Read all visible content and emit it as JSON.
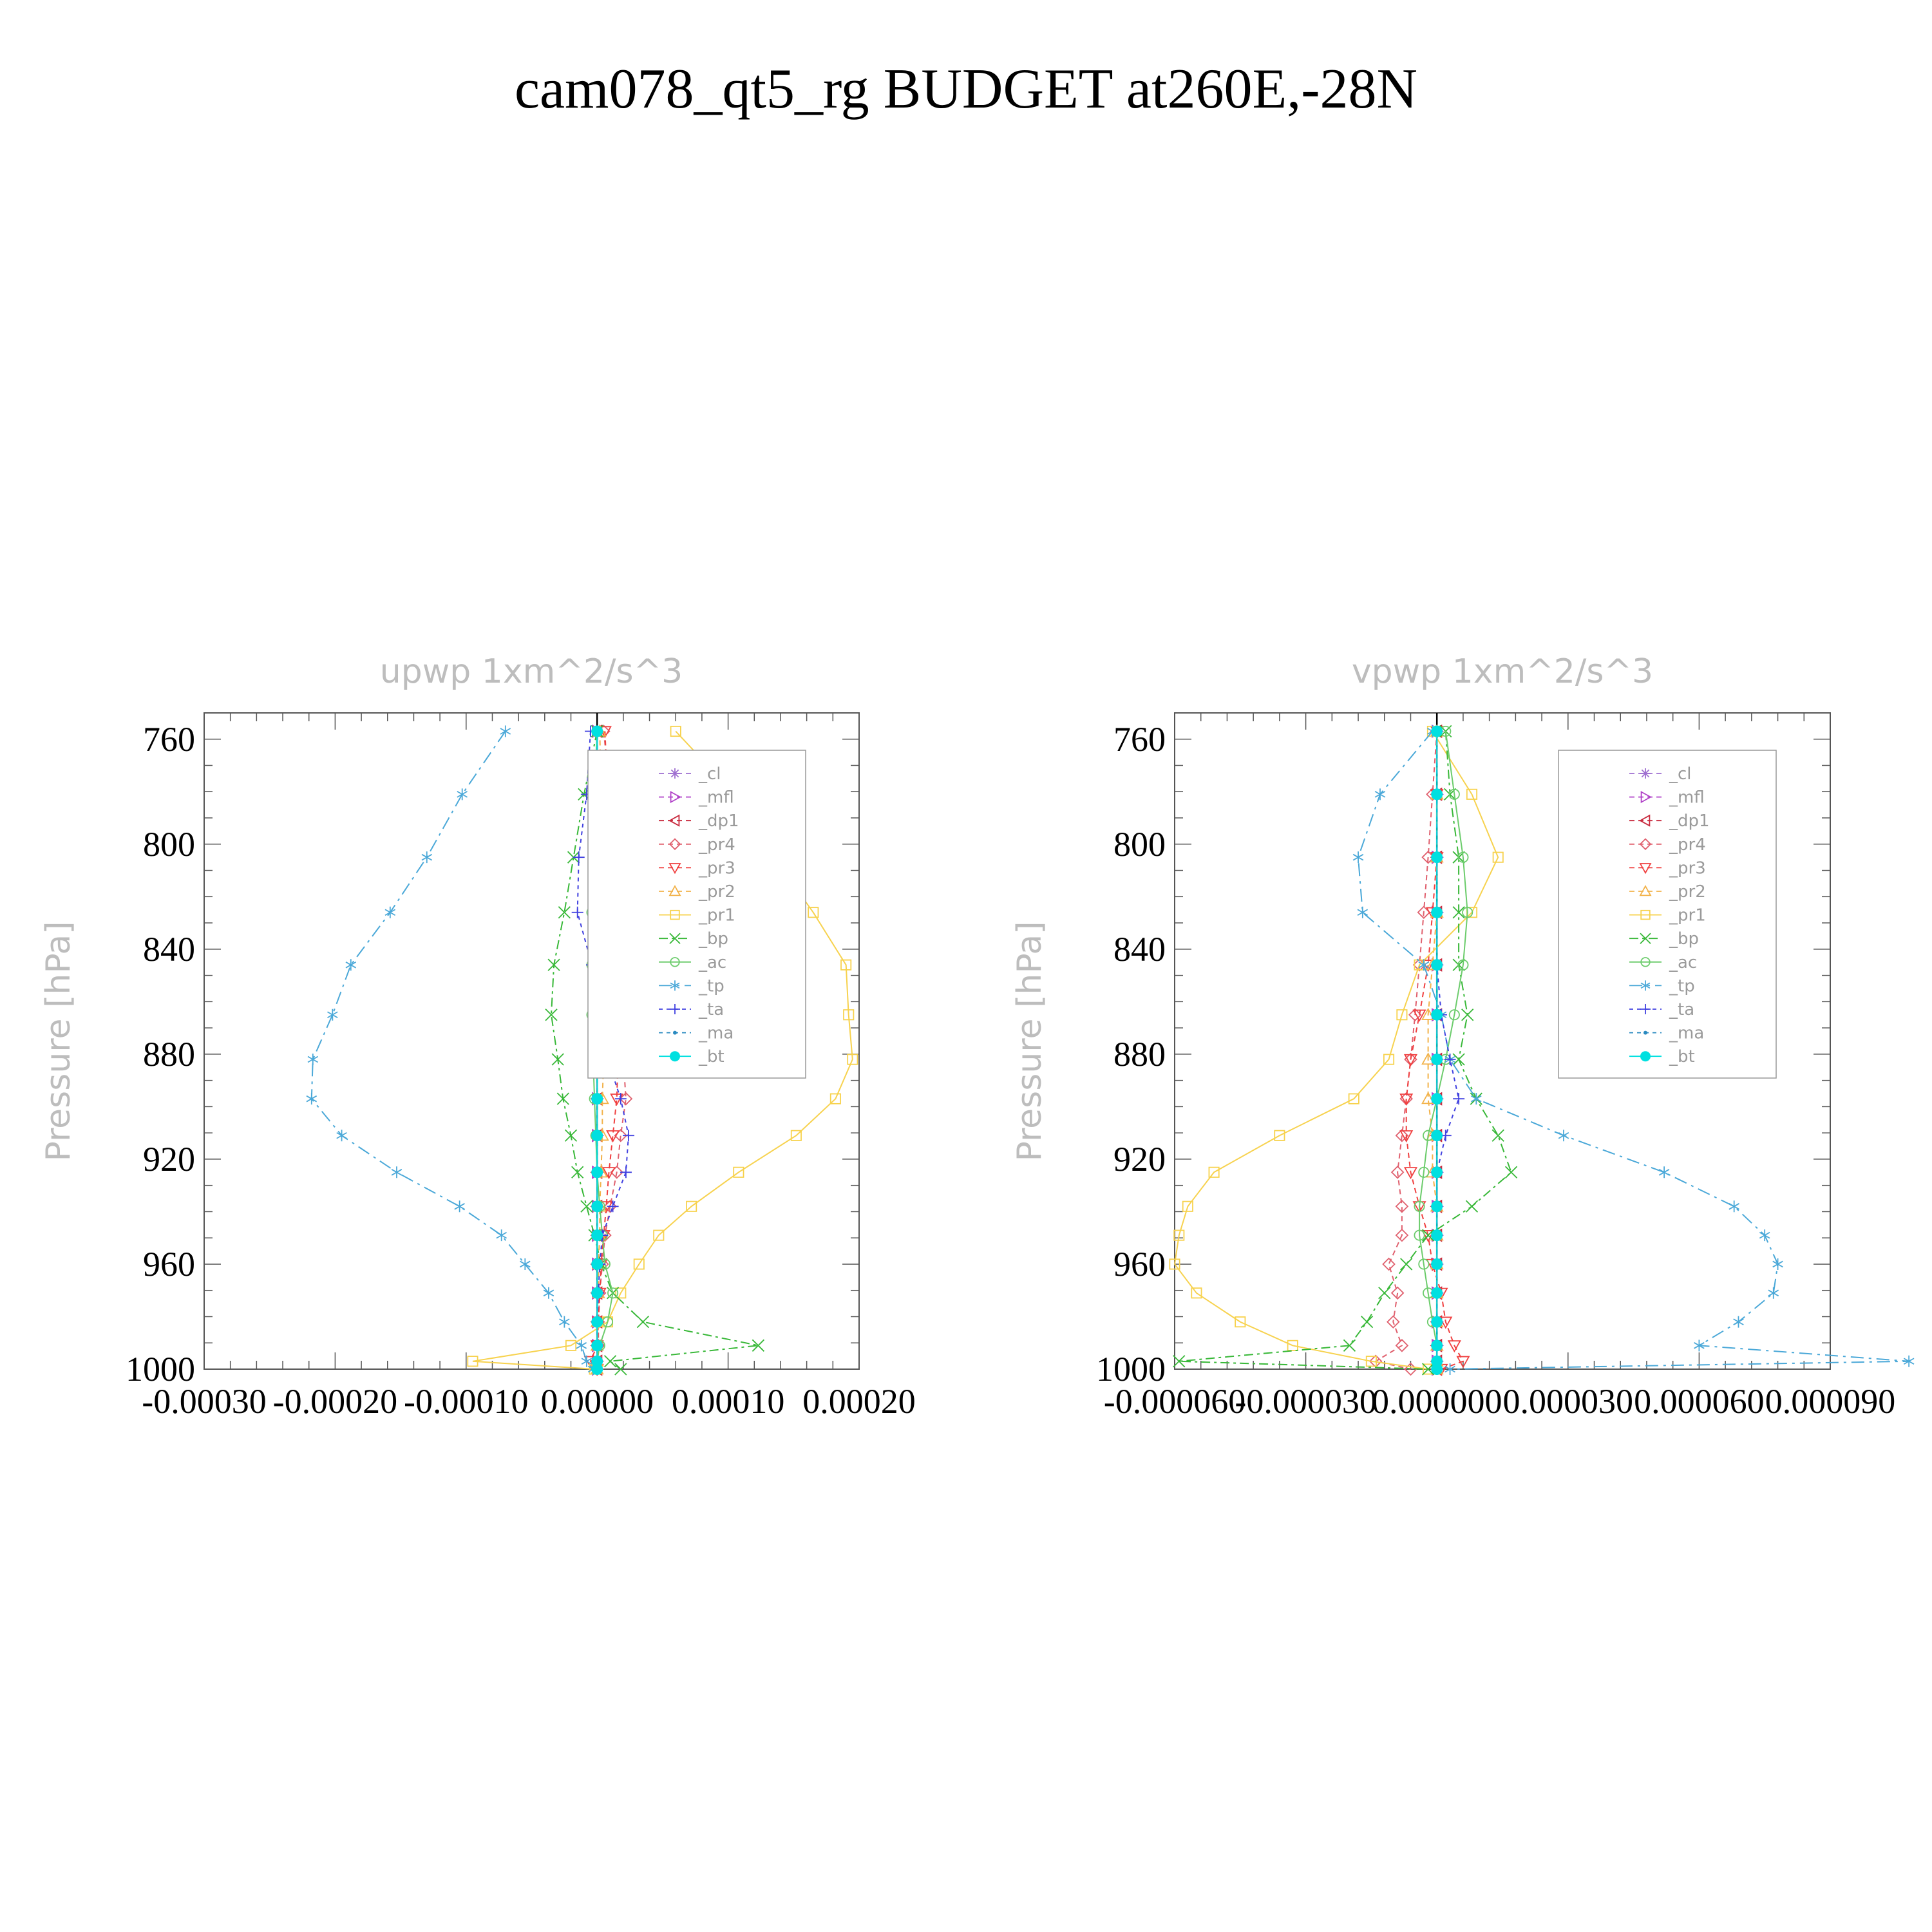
{
  "figure": {
    "title": "cam078_qt5_rg  BUDGET at260E,-28N"
  },
  "chart_data": [
    {
      "type": "line",
      "title": "upwp   1xm^2/s^3",
      "xlabel": "",
      "ylabel": "Pressure [hPa]",
      "xlim": [
        -0.0003,
        0.0002
      ],
      "ylim": [
        1000,
        750
      ],
      "x_tick_labels": [
        "-0.00030",
        "-0.00020",
        "-0.00010",
        "0.00000",
        "0.00010",
        "0.00020"
      ],
      "y_tick_labels": [
        "760",
        "800",
        "840",
        "880",
        "920",
        "960",
        "1000"
      ],
      "legend_location": "upper-right",
      "pressure_levels": [
        757,
        781,
        805,
        826,
        846,
        865,
        882,
        897,
        911,
        925,
        938,
        949,
        960,
        971,
        982,
        991,
        997,
        1000
      ],
      "series": [
        {
          "name": "_cl",
          "color": "#9f6fd0",
          "marker": "star",
          "dash": "8,6",
          "values": [
            0,
            0,
            0,
            0,
            0,
            0,
            0,
            0,
            0,
            0,
            0,
            0,
            0,
            0,
            0,
            0,
            0,
            0
          ]
        },
        {
          "name": "_mfl",
          "color": "#b040c8",
          "marker": "tri-right",
          "dash": "8,6",
          "values": [
            0,
            0,
            0,
            0,
            0,
            0,
            0,
            0,
            0,
            0,
            0,
            0,
            0,
            0,
            0,
            0,
            0,
            0
          ]
        },
        {
          "name": "_dp1",
          "color": "#c8283c",
          "marker": "tri-left",
          "dash": "8,6",
          "values": [
            0,
            0,
            0,
            0,
            0,
            0,
            0,
            0,
            0,
            0,
            0,
            0,
            0,
            0,
            0,
            0,
            0,
            0
          ]
        },
        {
          "name": "_pr4",
          "color": "#e0606e",
          "marker": "diamond",
          "dash": "8,6",
          "values": [
            5e-06,
            1e-05,
            1.3e-05,
            1.5e-05,
            1.8e-05,
            1.9e-05,
            2e-05,
            2.2e-05,
            1.8e-05,
            1.5e-05,
            1e-05,
            6e-06,
            4e-06,
            2e-06,
            1e-06,
            1e-06,
            0,
            0
          ]
        },
        {
          "name": "_pr3",
          "color": "#f04040",
          "marker": "tri-down",
          "dash": "8,6",
          "values": [
            6e-06,
            8e-06,
            1e-05,
            1.2e-05,
            1.5e-05,
            1.7e-05,
            1.6e-05,
            1.5e-05,
            1.2e-05,
            9e-06,
            7e-06,
            5e-06,
            3e-06,
            2e-06,
            1e-06,
            0,
            -5e-06,
            0
          ]
        },
        {
          "name": "_pr2",
          "color": "#f2b24a",
          "marker": "tri-up",
          "dash": "8,6",
          "values": [
            2e-06,
            3e-06,
            3e-06,
            4e-06,
            4e-06,
            5e-06,
            5e-06,
            4e-06,
            4e-06,
            3e-06,
            2e-06,
            2e-06,
            1e-06,
            1e-06,
            0,
            0,
            0,
            0
          ]
        },
        {
          "name": "_pr1",
          "color": "#f7d24e",
          "marker": "square",
          "dash": "",
          "values": [
            6e-05,
            0.000105,
            0.000135,
            0.000165,
            0.00019,
            0.000192,
            0.000195,
            0.000182,
            0.000152,
            0.000108,
            7.2e-05,
            4.7e-05,
            3.2e-05,
            1.8e-05,
            8e-06,
            -2e-05,
            -9.5e-05,
            -2e-06
          ]
        },
        {
          "name": "_bp",
          "color": "#38b838",
          "marker": "x",
          "dash": "14,6,4,6",
          "values": [
            0,
            -1e-05,
            -1.8e-05,
            -2.5e-05,
            -3.3e-05,
            -3.5e-05,
            -3e-05,
            -2.6e-05,
            -2e-05,
            -1.5e-05,
            -8e-06,
            -2e-06,
            3e-06,
            1.2e-05,
            3.5e-05,
            0.000123,
            1e-05,
            1.8e-05
          ]
        },
        {
          "name": "_ac",
          "color": "#6ccc6c",
          "marker": "circle",
          "dash": "",
          "values": [
            0,
            -2e-06,
            -3e-06,
            -4e-06,
            -4e-06,
            -4e-06,
            -3e-06,
            -2e-06,
            -1e-06,
            0,
            2e-06,
            4e-06,
            6e-06,
            1.2e-05,
            8e-06,
            2e-06,
            0,
            0
          ]
        },
        {
          "name": "_tp",
          "color": "#4aa8d8",
          "marker": "asterisk",
          "dash": "20,8,4,8",
          "values": [
            -7e-05,
            -0.000103,
            -0.00013,
            -0.000158,
            -0.000188,
            -0.000202,
            -0.000217,
            -0.000218,
            -0.000195,
            -0.000153,
            -0.000105,
            -7.3e-05,
            -5.5e-05,
            -3.7e-05,
            -2.5e-05,
            -1.2e-05,
            -8e-06,
            -3e-06
          ]
        },
        {
          "name": "_ta",
          "color": "#4040e0",
          "marker": "plus",
          "dash": "6,6",
          "values": [
            -5e-06,
            -8e-06,
            -1.4e-05,
            -1.5e-05,
            -4e-06,
            0,
            8e-06,
            1.8e-05,
            2.4e-05,
            2.2e-05,
            1.2e-05,
            4e-06,
            2e-06,
            1e-06,
            0,
            0,
            0,
            0
          ]
        },
        {
          "name": "_ma",
          "color": "#2a8ac0",
          "marker": "dot",
          "dash": "6,6",
          "values": [
            0,
            0,
            0,
            0,
            0,
            0,
            0,
            0,
            0,
            0,
            0,
            0,
            0,
            0,
            0,
            0,
            0,
            0
          ]
        },
        {
          "name": "_bt",
          "color": "#00e0e0",
          "marker": "filled-circle",
          "dash": "",
          "values": [
            0,
            0,
            0,
            0,
            0,
            0,
            0,
            0,
            0,
            0,
            0,
            0,
            0,
            0,
            0,
            0,
            0,
            0
          ]
        }
      ]
    },
    {
      "type": "line",
      "title": "vpwp   1xm^2/s^3",
      "xlabel": "",
      "ylabel": "Pressure [hPa]",
      "xlim": [
        -6e-05,
        9e-05
      ],
      "ylim": [
        1000,
        750
      ],
      "x_tick_labels": [
        "-0.000060",
        "-0.000030",
        "0.000000",
        "0.000030",
        "0.000060",
        "0.000090"
      ],
      "y_tick_labels": [
        "760",
        "800",
        "840",
        "880",
        "920",
        "960",
        "1000"
      ],
      "legend_location": "upper-right",
      "pressure_levels": [
        757,
        781,
        805,
        826,
        846,
        865,
        882,
        897,
        911,
        925,
        938,
        949,
        960,
        971,
        982,
        991,
        997,
        1000
      ],
      "series": [
        {
          "name": "_cl",
          "color": "#9f6fd0",
          "marker": "star",
          "dash": "8,6",
          "values": [
            0,
            0,
            0,
            0,
            0,
            0,
            0,
            0,
            0,
            0,
            0,
            0,
            0,
            0,
            0,
            0,
            0,
            0
          ]
        },
        {
          "name": "_mfl",
          "color": "#b040c8",
          "marker": "tri-right",
          "dash": "8,6",
          "values": [
            0,
            0,
            0,
            0,
            0,
            0,
            0,
            0,
            0,
            0,
            0,
            0,
            0,
            0,
            0,
            0,
            0,
            0
          ]
        },
        {
          "name": "_dp1",
          "color": "#c8283c",
          "marker": "tri-left",
          "dash": "8,6",
          "values": [
            0,
            0,
            0,
            0,
            0,
            0,
            0,
            0,
            0,
            0,
            0,
            0,
            0,
            0,
            0,
            0,
            0,
            0
          ]
        },
        {
          "name": "_pr4",
          "color": "#e0606e",
          "marker": "diamond",
          "dash": "8,6",
          "values": [
            0,
            -1e-06,
            -2e-06,
            -3e-06,
            -4e-06,
            -5e-06,
            -6e-06,
            -7e-06,
            -8e-06,
            -9e-06,
            -8e-06,
            -8e-06,
            -1.1e-05,
            -9e-06,
            -1e-05,
            -8e-06,
            -1.4e-05,
            -6e-06
          ]
        },
        {
          "name": "_pr3",
          "color": "#f04040",
          "marker": "tri-down",
          "dash": "8,6",
          "values": [
            0,
            0,
            0,
            -1e-06,
            -2e-06,
            -4e-06,
            -6e-06,
            -7e-06,
            -7e-06,
            -6e-06,
            -4e-06,
            -2e-06,
            -1e-06,
            1e-06,
            2e-06,
            4e-06,
            6e-06,
            1e-06
          ]
        },
        {
          "name": "_pr2",
          "color": "#f2b24a",
          "marker": "tri-up",
          "dash": "8,6",
          "values": [
            0,
            0,
            0,
            0,
            -1e-06,
            -2e-06,
            -2e-06,
            -2e-06,
            -1e-06,
            -1e-06,
            0,
            0,
            0,
            0,
            0,
            0,
            0,
            0
          ]
        },
        {
          "name": "_pr1",
          "color": "#f7d24e",
          "marker": "square",
          "dash": "",
          "values": [
            -1e-06,
            8e-06,
            1.4e-05,
            8e-06,
            -4e-06,
            -8e-06,
            -1.1e-05,
            -1.9e-05,
            -3.6e-05,
            -5.1e-05,
            -5.7e-05,
            -5.9e-05,
            -6e-05,
            -5.5e-05,
            -4.5e-05,
            -3.3e-05,
            -1.5e-05,
            -2e-06
          ]
        },
        {
          "name": "_bp",
          "color": "#38b838",
          "marker": "x",
          "dash": "14,6,4,6",
          "values": [
            2e-06,
            3e-06,
            5e-06,
            5e-06,
            5e-06,
            7e-06,
            5e-06,
            9e-06,
            1.4e-05,
            1.7e-05,
            8e-06,
            -2e-06,
            -7e-06,
            -1.2e-05,
            -1.6e-05,
            -2e-05,
            -5.9e-05,
            -2e-06
          ]
        },
        {
          "name": "_ac",
          "color": "#6ccc6c",
          "marker": "circle",
          "dash": "",
          "values": [
            2e-06,
            4e-06,
            6e-06,
            7e-06,
            6e-06,
            4e-06,
            2e-06,
            0,
            -2e-06,
            -3e-06,
            -4e-06,
            -4e-06,
            -3e-06,
            -2e-06,
            -1e-06,
            0,
            0,
            0
          ]
        },
        {
          "name": "_tp",
          "color": "#4aa8d8",
          "marker": "asterisk",
          "dash": "20,8,4,8",
          "values": [
            -1e-06,
            -1.3e-05,
            -1.8e-05,
            -1.7e-05,
            -3e-06,
            1e-06,
            3e-06,
            9e-06,
            2.9e-05,
            5.2e-05,
            6.8e-05,
            7.5e-05,
            7.8e-05,
            7.7e-05,
            6.9e-05,
            6e-05,
            0.000108,
            3e-06
          ]
        },
        {
          "name": "_ta",
          "color": "#4040e0",
          "marker": "plus",
          "dash": "6,6",
          "values": [
            0,
            0,
            0,
            0,
            0,
            1e-06,
            3e-06,
            5e-06,
            2e-06,
            0,
            0,
            0,
            0,
            0,
            0,
            0,
            0,
            0
          ]
        },
        {
          "name": "_ma",
          "color": "#2a8ac0",
          "marker": "dot",
          "dash": "6,6",
          "values": [
            0,
            0,
            0,
            0,
            0,
            0,
            0,
            0,
            0,
            0,
            0,
            0,
            0,
            0,
            0,
            0,
            0,
            0
          ]
        },
        {
          "name": "_bt",
          "color": "#00e0e0",
          "marker": "filled-circle",
          "dash": "",
          "values": [
            0,
            0,
            0,
            0,
            0,
            0,
            0,
            0,
            0,
            0,
            0,
            0,
            0,
            0,
            0,
            0,
            0,
            0
          ]
        }
      ]
    }
  ]
}
